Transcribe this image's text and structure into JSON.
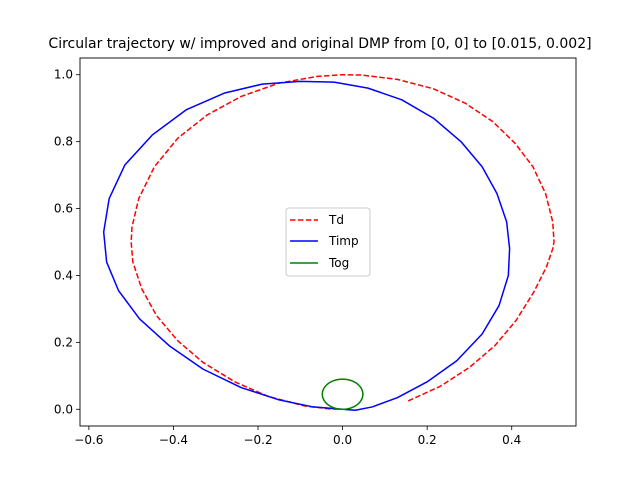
{
  "chart_data": {
    "type": "line",
    "title": "Circular trajectory w/ improved and original DMP from [0, 0] to [0.015, 0.002]",
    "xlabel": "",
    "ylabel": "",
    "xlim": [
      -0.621,
      0.552
    ],
    "ylim": [
      -0.05,
      1.05
    ],
    "xticks": [
      -0.6,
      -0.4,
      -0.2,
      0.0,
      0.2,
      0.4
    ],
    "xtick_labels": [
      "−0.6",
      "−0.4",
      "−0.2",
      "0.0",
      "0.2",
      "0.4"
    ],
    "yticks": [
      0.0,
      0.2,
      0.4,
      0.6,
      0.8,
      1.0
    ],
    "ytick_labels": [
      "0.0",
      "0.2",
      "0.4",
      "0.6",
      "0.8",
      "1.0"
    ],
    "grid": false,
    "legend_position": "center",
    "series": [
      {
        "name": "Td",
        "color": "#ff0000",
        "style": "dashed",
        "points": [
          [
            0.155,
            0.025
          ],
          [
            0.23,
            0.068
          ],
          [
            0.3,
            0.125
          ],
          [
            0.36,
            0.19
          ],
          [
            0.41,
            0.265
          ],
          [
            0.452,
            0.35
          ],
          [
            0.482,
            0.425
          ],
          [
            0.497,
            0.48
          ],
          [
            0.5,
            0.5
          ],
          [
            0.497,
            0.56
          ],
          [
            0.48,
            0.645
          ],
          [
            0.45,
            0.725
          ],
          [
            0.408,
            0.795
          ],
          [
            0.355,
            0.86
          ],
          [
            0.29,
            0.915
          ],
          [
            0.215,
            0.958
          ],
          [
            0.13,
            0.986
          ],
          [
            0.045,
            0.999
          ],
          [
            0.0,
            1.0
          ],
          [
            -0.06,
            0.995
          ],
          [
            -0.15,
            0.975
          ],
          [
            -0.24,
            0.935
          ],
          [
            -0.32,
            0.88
          ],
          [
            -0.39,
            0.81
          ],
          [
            -0.445,
            0.725
          ],
          [
            -0.482,
            0.63
          ],
          [
            -0.498,
            0.545
          ],
          [
            -0.5,
            0.5
          ],
          [
            -0.496,
            0.44
          ],
          [
            -0.475,
            0.36
          ],
          [
            -0.44,
            0.28
          ],
          [
            -0.39,
            0.205
          ],
          [
            -0.33,
            0.14
          ],
          [
            -0.255,
            0.082
          ],
          [
            -0.175,
            0.038
          ],
          [
            -0.09,
            0.01
          ],
          [
            -0.03,
            0.001
          ],
          [
            0.0,
            0.0
          ]
        ]
      },
      {
        "name": "Timp",
        "color": "#0000ff",
        "style": "solid",
        "points": [
          [
            0.0,
            0.0
          ],
          [
            0.03,
            -0.003
          ],
          [
            0.07,
            0.007
          ],
          [
            0.13,
            0.035
          ],
          [
            0.2,
            0.082
          ],
          [
            0.27,
            0.145
          ],
          [
            0.33,
            0.225
          ],
          [
            0.37,
            0.31
          ],
          [
            0.392,
            0.4
          ],
          [
            0.395,
            0.48
          ],
          [
            0.388,
            0.56
          ],
          [
            0.365,
            0.645
          ],
          [
            0.33,
            0.725
          ],
          [
            0.28,
            0.8
          ],
          [
            0.215,
            0.87
          ],
          [
            0.14,
            0.925
          ],
          [
            0.06,
            0.96
          ],
          [
            -0.02,
            0.978
          ],
          [
            -0.1,
            0.98
          ],
          [
            -0.19,
            0.972
          ],
          [
            -0.28,
            0.945
          ],
          [
            -0.37,
            0.895
          ],
          [
            -0.45,
            0.82
          ],
          [
            -0.515,
            0.73
          ],
          [
            -0.552,
            0.63
          ],
          [
            -0.565,
            0.53
          ],
          [
            -0.558,
            0.44
          ],
          [
            -0.53,
            0.355
          ],
          [
            -0.48,
            0.27
          ],
          [
            -0.41,
            0.19
          ],
          [
            -0.33,
            0.12
          ],
          [
            -0.24,
            0.065
          ],
          [
            -0.15,
            0.028
          ],
          [
            -0.07,
            0.007
          ],
          [
            0.0,
            0.0
          ]
        ]
      },
      {
        "name": "Tog",
        "color": "#008000",
        "style": "solid",
        "shape": "loop",
        "center": [
          0.0,
          0.045
        ],
        "radius_x": 0.048,
        "radius_y": 0.045
      }
    ]
  }
}
